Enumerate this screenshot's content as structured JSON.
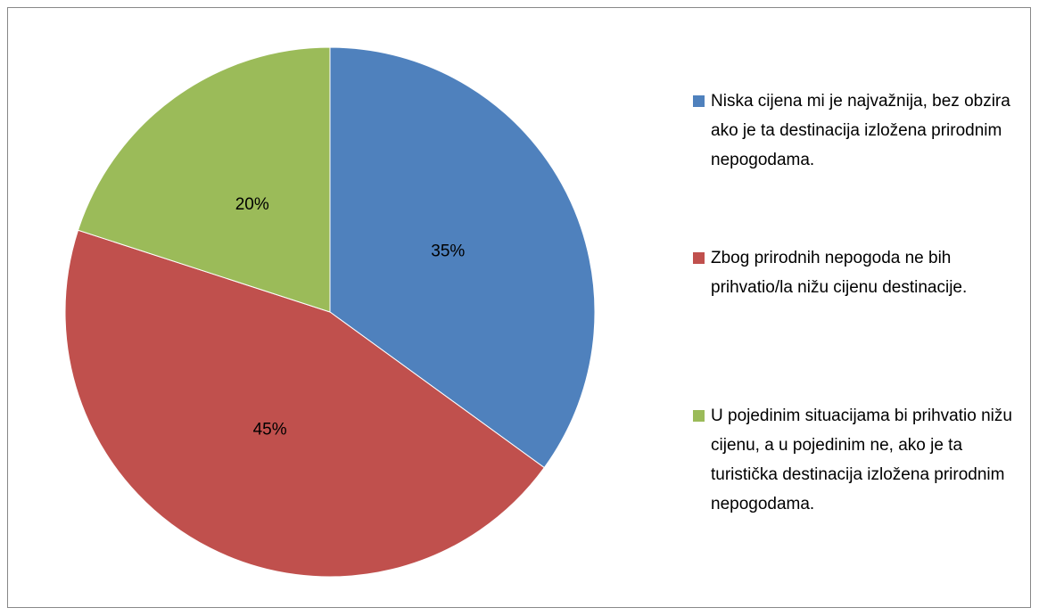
{
  "chart_data": {
    "type": "pie",
    "categories": [
      "Niska cijena mi je najvažnija, bez obzira ako je ta destinacija izložena prirodnim nepogodama.",
      "Zbog prirodnih nepogoda ne bih prihvatio/la nižu cijenu destinacije.",
      "U pojedinim situacijama bi prihvatio nižu cijenu, a u pojedinim ne, ako je ta turistička destinacija izložena prirodnim nepogodama."
    ],
    "values": [
      35,
      45,
      20
    ],
    "value_labels": [
      "35%",
      "45%",
      "20%"
    ],
    "colors": [
      "#4f81bd",
      "#c0504d",
      "#9bbb59"
    ],
    "legend": "right"
  }
}
